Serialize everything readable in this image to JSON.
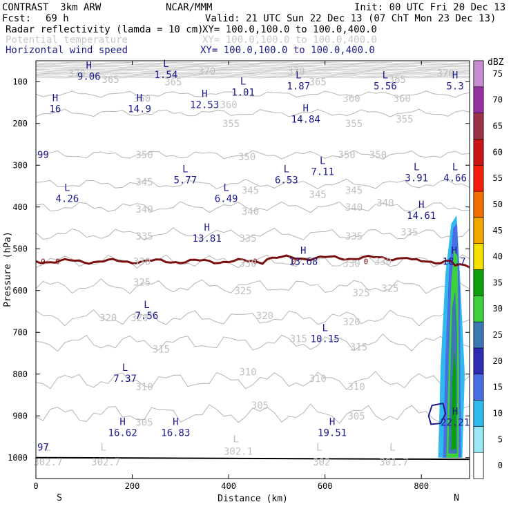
{
  "header": {
    "model": "CONTRAST  3km ARW",
    "org": "NCAR/MMM",
    "init": "Init: 00 UTC Fri 20 Dec 13",
    "fcst_label": "Fcst:",
    "fcst_value": "69 h",
    "valid": "Valid: 21 UTC Sun 22 Dec 13 (07 ChT Mon 23 Dec 13)",
    "fields": [
      {
        "name": "Radar reflectivity (lamda = 10 cm)",
        "xy": "XY= 100.0,100.0 to 100.0,400.0",
        "color": "#000000"
      },
      {
        "name": "Potential temperature",
        "xy": "XY= 100.0,100.0 to 100.0,400.0",
        "color": "#c8c8c8"
      },
      {
        "name": "Horizontal wind speed",
        "xy": "XY= 100.0,100.0 to 100.0,400.0",
        "color": "#1a1a8c"
      }
    ]
  },
  "chart_data": {
    "type": "cross-section",
    "xlabel": "Distance (km)",
    "ylabel": "Pressure (hPa)",
    "xlim": [
      0,
      900
    ],
    "ylim": [
      1050,
      50
    ],
    "x_ticks": [
      0,
      200,
      400,
      600,
      800
    ],
    "y_ticks": [
      100,
      200,
      300,
      400,
      500,
      600,
      700,
      800,
      900,
      1000
    ],
    "endpoint_labels": {
      "left": "S",
      "right": "N"
    },
    "theta_labels": [
      {
        "text": "370",
        "x": 85,
        "p": 80
      },
      {
        "text": "365",
        "x": 155,
        "p": 95
      },
      {
        "text": "370",
        "x": 355,
        "p": 75
      },
      {
        "text": "365",
        "x": 285,
        "p": 100
      },
      {
        "text": "370",
        "x": 540,
        "p": 75
      },
      {
        "text": "365",
        "x": 585,
        "p": 100
      },
      {
        "text": "365",
        "x": 750,
        "p": 95
      },
      {
        "text": "370",
        "x": 850,
        "p": 80
      },
      {
        "text": "360",
        "x": 220,
        "p": 140
      },
      {
        "text": "360",
        "x": 400,
        "p": 155
      },
      {
        "text": "360",
        "x": 655,
        "p": 140
      },
      {
        "text": "360",
        "x": 760,
        "p": 140
      },
      {
        "text": "355",
        "x": 405,
        "p": 200
      },
      {
        "text": "355",
        "x": 660,
        "p": 200
      },
      {
        "text": "355",
        "x": 765,
        "p": 190
      },
      {
        "text": "350",
        "x": 225,
        "p": 275
      },
      {
        "text": "350",
        "x": 438,
        "p": 280
      },
      {
        "text": "350",
        "x": 645,
        "p": 275
      },
      {
        "text": "350",
        "x": 710,
        "p": 275
      },
      {
        "text": "345",
        "x": 225,
        "p": 340
      },
      {
        "text": "345",
        "x": 445,
        "p": 360
      },
      {
        "text": "345",
        "x": 585,
        "p": 370
      },
      {
        "text": "345",
        "x": 660,
        "p": 360
      },
      {
        "text": "340",
        "x": 225,
        "p": 405
      },
      {
        "text": "340",
        "x": 445,
        "p": 410
      },
      {
        "text": "340",
        "x": 660,
        "p": 400
      },
      {
        "text": "340",
        "x": 725,
        "p": 390
      },
      {
        "text": "335",
        "x": 225,
        "p": 470
      },
      {
        "text": "335",
        "x": 440,
        "p": 475
      },
      {
        "text": "335",
        "x": 660,
        "p": 470
      },
      {
        "text": "335",
        "x": 775,
        "p": 460
      },
      {
        "text": "330",
        "x": 220,
        "p": 530
      },
      {
        "text": "330",
        "x": 440,
        "p": 535
      },
      {
        "text": "330",
        "x": 655,
        "p": 535
      },
      {
        "text": "330",
        "x": 720,
        "p": 530
      },
      {
        "text": "325",
        "x": 220,
        "p": 580
      },
      {
        "text": "325",
        "x": 430,
        "p": 600
      },
      {
        "text": "325",
        "x": 675,
        "p": 605
      },
      {
        "text": "325",
        "x": 735,
        "p": 595
      },
      {
        "text": "320",
        "x": 150,
        "p": 665
      },
      {
        "text": "320",
        "x": 215,
        "p": 665
      },
      {
        "text": "320",
        "x": 475,
        "p": 660
      },
      {
        "text": "320",
        "x": 655,
        "p": 675
      },
      {
        "text": "315",
        "x": 260,
        "p": 740
      },
      {
        "text": "315",
        "x": 545,
        "p": 715
      },
      {
        "text": "315",
        "x": 670,
        "p": 735
      },
      {
        "text": "310",
        "x": 225,
        "p": 830
      },
      {
        "text": "310",
        "x": 440,
        "p": 795
      },
      {
        "text": "310",
        "x": 585,
        "p": 810
      },
      {
        "text": "310",
        "x": 665,
        "p": 830
      },
      {
        "text": "305",
        "x": 225,
        "p": 915
      },
      {
        "text": "305",
        "x": 465,
        "p": 875
      },
      {
        "text": "305",
        "x": 665,
        "p": 900
      }
    ],
    "surface_theta_labels": [
      {
        "text": "302.7",
        "x": 25,
        "p": 1010
      },
      {
        "text": "302.7",
        "x": 145,
        "p": 1010
      },
      {
        "text": "302.1",
        "x": 420,
        "p": 985
      },
      {
        "text": "302",
        "x": 593,
        "p": 1010
      },
      {
        "text": "301.7",
        "x": 743,
        "p": 1010
      }
    ],
    "surface_L_marks": [
      {
        "x": 25,
        "p": 975
      },
      {
        "x": 140,
        "p": 975
      },
      {
        "x": 415,
        "p": 955
      },
      {
        "x": 588,
        "p": 975
      },
      {
        "x": 740,
        "p": 975
      }
    ],
    "zero_level_labels": [
      {
        "text": "0",
        "x": 15
      },
      {
        "text": "0",
        "x": 45
      },
      {
        "text": "0",
        "x": 455
      },
      {
        "text": "0",
        "x": 535
      },
      {
        "text": "0",
        "x": 685
      }
    ],
    "wind_extrema": [
      {
        "t": "H",
        "v": "9.06",
        "x": 110,
        "p": 82
      },
      {
        "t": "L",
        "v": "1.54",
        "x": 270,
        "p": 78
      },
      {
        "t": "L",
        "v": "1.01",
        "x": 430,
        "p": 120
      },
      {
        "t": "L",
        "v": "1.87",
        "x": 545,
        "p": 105
      },
      {
        "t": "L",
        "v": "5.56",
        "x": 725,
        "p": 105
      },
      {
        "t": "H",
        "v": "5.3",
        "x": 870,
        "p": 105
      },
      {
        "t": "H",
        "v": "16",
        "x": 40,
        "p": 160
      },
      {
        "t": "H",
        "v": "14.9",
        "x": 215,
        "p": 160
      },
      {
        "t": "H",
        "v": "12.53",
        "x": 350,
        "p": 150
      },
      {
        "t": "H",
        "v": "14.84",
        "x": 560,
        "p": 185
      },
      {
        "t": "",
        "v": "99",
        "x": 0,
        "p": 270
      },
      {
        "t": "L",
        "v": "5.77",
        "x": 310,
        "p": 330
      },
      {
        "t": "L",
        "v": "6.53",
        "x": 520,
        "p": 330
      },
      {
        "t": "L",
        "v": "7.11",
        "x": 595,
        "p": 310
      },
      {
        "t": "L",
        "v": "3.91",
        "x": 790,
        "p": 325
      },
      {
        "t": "L",
        "v": "4.66",
        "x": 870,
        "p": 325
      },
      {
        "t": "L",
        "v": "4.26",
        "x": 65,
        "p": 375
      },
      {
        "t": "L",
        "v": "6.49",
        "x": 395,
        "p": 375
      },
      {
        "t": "H",
        "v": "14.61",
        "x": 800,
        "p": 415
      },
      {
        "t": "H",
        "v": "13.81",
        "x": 355,
        "p": 470
      },
      {
        "t": "H",
        "v": "13.68",
        "x": 555,
        "p": 525
      },
      {
        "t": "H",
        "v": "18.7",
        "x": 868,
        "p": 525
      },
      {
        "t": "L",
        "v": "7.56",
        "x": 230,
        "p": 655
      },
      {
        "t": "L",
        "v": "10.15",
        "x": 600,
        "p": 710
      },
      {
        "t": "L",
        "v": "7.37",
        "x": 185,
        "p": 805
      },
      {
        "t": "H",
        "v": "16.62",
        "x": 180,
        "p": 935
      },
      {
        "t": "H",
        "v": "16.83",
        "x": 290,
        "p": 935
      },
      {
        "t": "H",
        "v": "19.51",
        "x": 615,
        "p": 935
      },
      {
        "t": "H",
        "v": "22.21",
        "x": 870,
        "p": 910
      },
      {
        "t": "",
        "v": "97",
        "x": 0,
        "p": 970
      }
    ],
    "colorbar": {
      "unit": "dBZ",
      "levels": [
        0,
        5,
        10,
        15,
        20,
        25,
        30,
        35,
        40,
        45,
        50,
        55,
        60,
        65,
        70,
        75
      ],
      "colors": [
        "#ffffff",
        "#9be8f5",
        "#2fb9ee",
        "#4a6ee6",
        "#2d2db4",
        "#3c78b4",
        "#3cd23c",
        "#0aa00a",
        "#f5e100",
        "#f5a500",
        "#f56e00",
        "#f51e0a",
        "#c81414",
        "#9c3246",
        "#9632a0",
        "#c88cd2"
      ]
    }
  }
}
